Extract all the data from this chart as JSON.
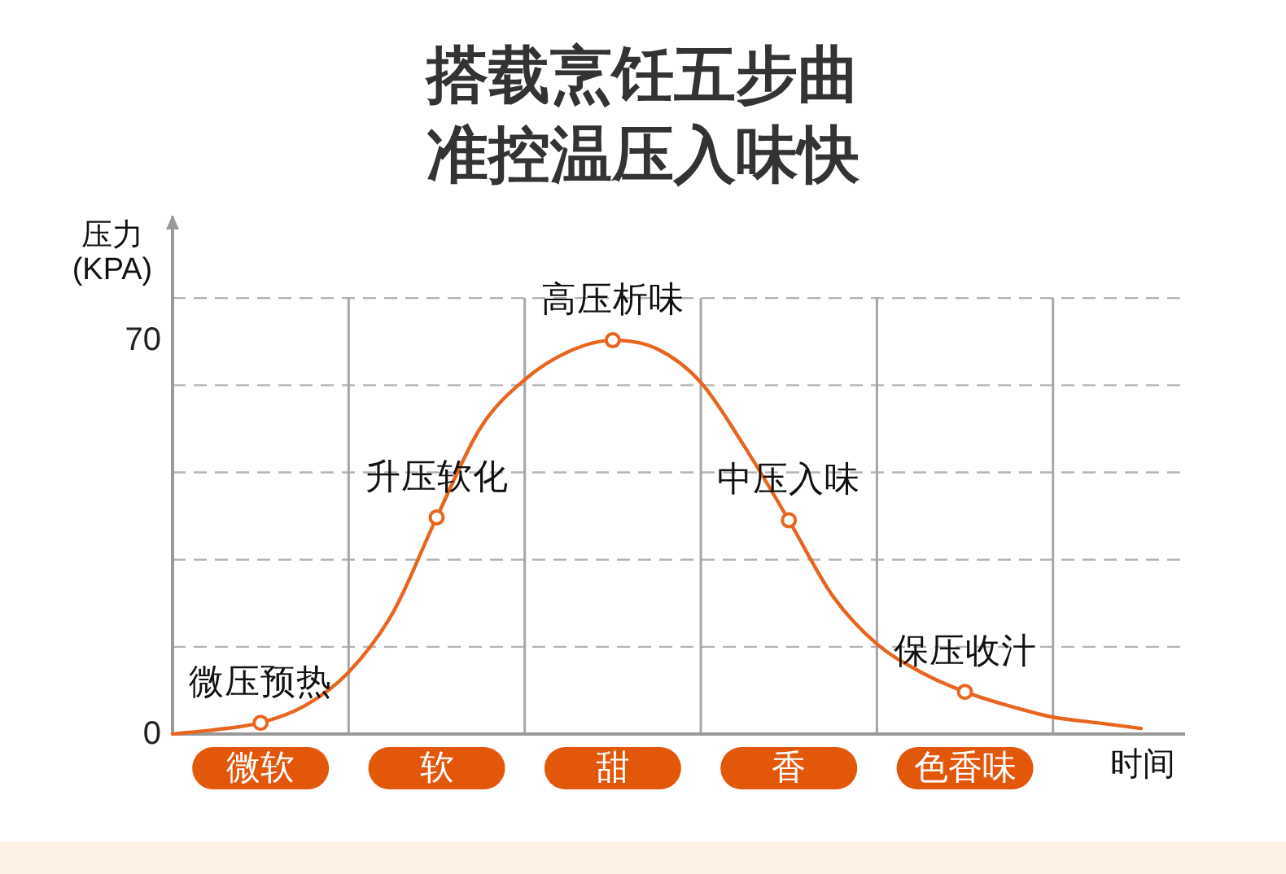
{
  "chart_data": {
    "type": "line",
    "title": "搭载烹饪五步曲",
    "subtitle": "准控温压入味快",
    "xlabel": "时间",
    "ylabel": "压力\n(KPA)",
    "categories": [
      null,
      null,
      "微软",
      null,
      null,
      null,
      "软",
      null,
      null,
      null,
      "甜",
      null,
      null,
      null,
      "香",
      null,
      null,
      null,
      "色香味",
      null,
      null,
      null,
      null,
      null
    ],
    "ylim": [
      0,
      92
    ],
    "yticks": [
      0,
      {
        "value": 15.5,
        "label": null
      },
      {
        "value": 31,
        "label": null
      },
      {
        "value": 46.5,
        "label": null
      },
      {
        "value": 62,
        "label": null
      },
      70,
      {
        "value": 77.5,
        "label": null
      }
    ],
    "grid": true,
    "series": [
      {
        "color": "#e8651f",
        "marker": "none",
        "values": [
          0,
          0.8,
          2,
          5,
          11,
          21.5,
          38.5,
          54.5,
          63,
          68,
          70,
          68.5,
          62.5,
          51,
          38,
          24.5,
          16,
          11,
          7.5,
          5,
          3,
          2,
          1,
          null
        ]
      },
      {
        "type": "scatter",
        "color": "#e8651f",
        "marker": "circle",
        "values": [
          null,
          null,
          2,
          null,
          null,
          null,
          38.5,
          null,
          null,
          null,
          70,
          null,
          null,
          null,
          38,
          null,
          null,
          null,
          7.5,
          null,
          null,
          null,
          null,
          null
        ]
      }
    ],
    "annotations": [
      {
        "text": "微压预热",
        "x": "微软",
        "y": 2
      },
      {
        "text": "升压软化",
        "x": "软",
        "y": 38.5
      },
      {
        "text": "高压析味",
        "x": "甜",
        "y": 70
      },
      {
        "text": "中压入味",
        "x": "香",
        "y": 38
      },
      {
        "text": "保压收汁",
        "x": "色香味",
        "y": 7.5
      }
    ]
  }
}
